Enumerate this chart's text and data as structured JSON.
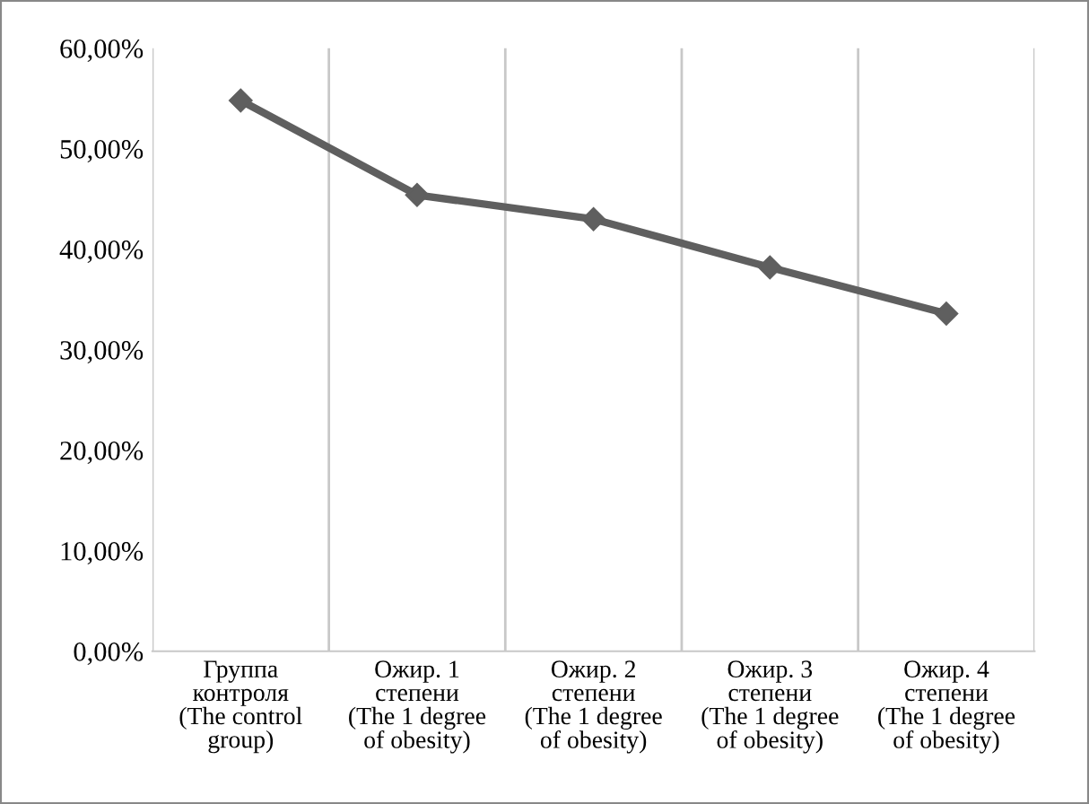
{
  "chart_data": {
    "type": "line",
    "categories": [
      "Группа\nконтроля\n(The control\ngroup)",
      "Ожир. 1\nстепени\n(The 1 degree\nof obesity)",
      "Ожир. 2\nстепени\n(The 1 degree\nof obesity)",
      "Ожир. 3\nстепени\n(The 1 degree\nof obesity)",
      "Ожир. 4\nстепени\n(The 1 degree\nof obesity)"
    ],
    "series": [
      {
        "color": "#5f5f5f",
        "values": [
          54.8,
          45.4,
          43.0,
          38.2,
          33.6
        ]
      }
    ],
    "ylim": [
      0,
      60
    ],
    "yticks": [
      {
        "value": 0,
        "label": "0,00%"
      },
      {
        "value": 10,
        "label": "10,00%"
      },
      {
        "value": 20,
        "label": "20,00%"
      },
      {
        "value": 30,
        "label": "30,00%"
      },
      {
        "value": 40,
        "label": "40,00%"
      },
      {
        "value": 50,
        "label": "50,00%"
      },
      {
        "value": 60,
        "label": "60,00%"
      }
    ],
    "grid": "x",
    "marker": "diamond",
    "line_style": "solid",
    "legend": false
  }
}
